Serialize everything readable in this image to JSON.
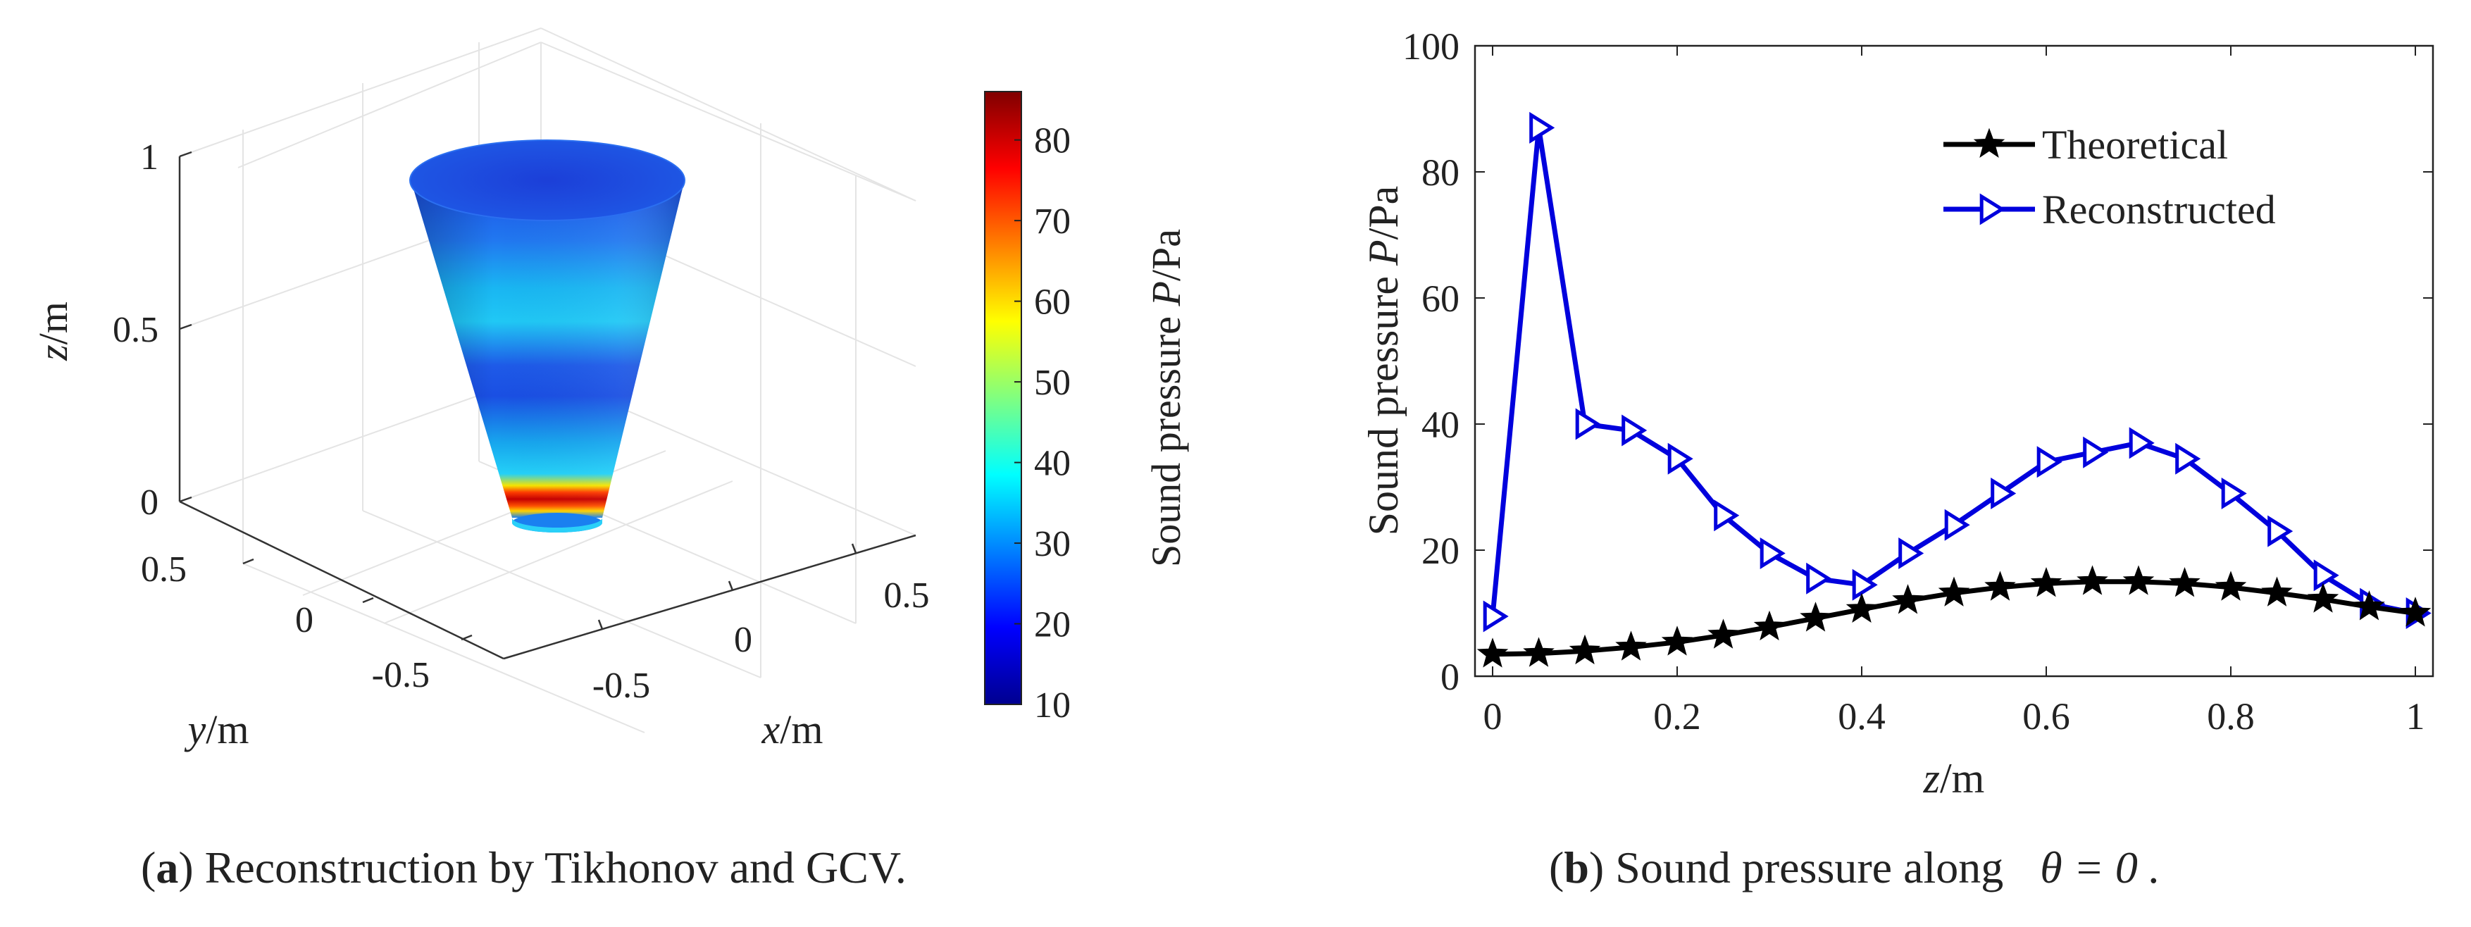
{
  "chart_data": [
    {
      "type": "surface3d",
      "shape": "truncated-cone",
      "axes": {
        "x": {
          "label_var": "x",
          "label_unit": "/m",
          "ticks": [
            "-0.5",
            "0",
            "0.5"
          ]
        },
        "y": {
          "label_var": "y",
          "label_unit": "/m",
          "ticks": [
            "0.5",
            "0",
            "-0.5"
          ]
        },
        "z": {
          "label_var": "z",
          "label_unit": "/m",
          "ticks": [
            "0",
            "0.5",
            "1"
          ]
        }
      },
      "zlim": [
        0,
        1
      ],
      "grid": true,
      "colorbar": {
        "label_main": "Sound pressure ",
        "label_var": "P",
        "label_unit": "/Pa",
        "range": [
          10,
          86
        ],
        "ticks": [
          "10",
          "20",
          "30",
          "40",
          "50",
          "60",
          "70",
          "80"
        ],
        "colormap": "jet"
      },
      "caption": {
        "letter": "a",
        "text": " Reconstruction by Tikhonov and GCV."
      }
    },
    {
      "type": "line",
      "x": [
        0,
        0.05,
        0.1,
        0.15,
        0.2,
        0.25,
        0.3,
        0.35,
        0.4,
        0.45,
        0.5,
        0.55,
        0.6,
        0.65,
        0.7,
        0.75,
        0.8,
        0.85,
        0.9,
        0.95,
        1
      ],
      "series": [
        {
          "name": "Theoretical",
          "color": "#000000",
          "marker": "star",
          "values": [
            3.5,
            3.6,
            4.0,
            4.6,
            5.4,
            6.5,
            7.8,
            9.2,
            10.6,
            12.0,
            13.2,
            14.1,
            14.7,
            15.0,
            15.0,
            14.7,
            14.1,
            13.2,
            12.2,
            11.0,
            10.0
          ]
        },
        {
          "name": "Reconstructed",
          "color": "#0000dd",
          "marker": "triangle-right",
          "values": [
            9.5,
            87,
            40,
            39,
            34.5,
            25.5,
            19.5,
            15.5,
            14.5,
            19.5,
            24,
            29,
            34,
            35.5,
            37,
            34.5,
            29,
            23,
            16,
            11.5,
            10
          ]
        }
      ],
      "xlim": [
        0,
        1
      ],
      "ylim": [
        0,
        100
      ],
      "xticks": [
        "0",
        "0.2",
        "0.4",
        "0.6",
        "0.8",
        "1"
      ],
      "yticks": [
        "0",
        "20",
        "40",
        "60",
        "80",
        "100"
      ],
      "xlabel": {
        "var": "z",
        "unit": "/m"
      },
      "ylabel": {
        "main": "Sound pressure ",
        "var": "P",
        "unit": "/Pa"
      },
      "legend_position": "top-right",
      "grid": false,
      "caption": {
        "letter": "b",
        "text": " Sound pressure along ",
        "math": "θ = 0 ."
      }
    }
  ]
}
